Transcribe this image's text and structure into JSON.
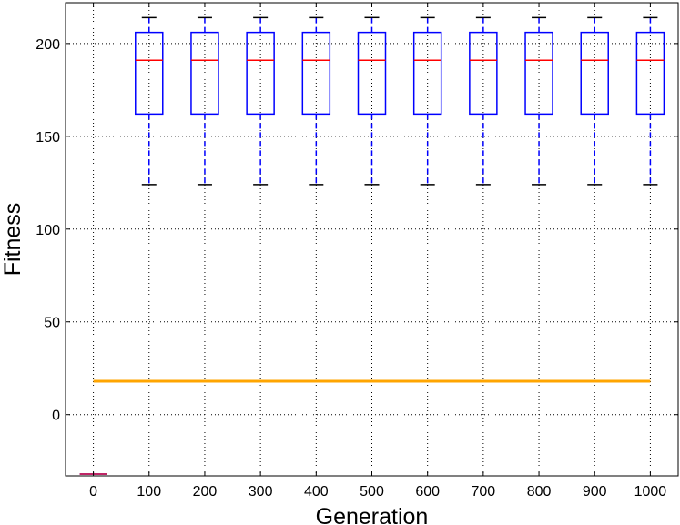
{
  "chart_data": {
    "type": "box",
    "title": "",
    "xlabel": "Generation",
    "ylabel": "Fitness",
    "ylim": [
      -33,
      222
    ],
    "xlim": [
      -50,
      1050
    ],
    "grid": true,
    "x_ticks": [
      0,
      100,
      200,
      300,
      400,
      500,
      600,
      700,
      800,
      900,
      1000
    ],
    "y_ticks": [
      0,
      50,
      100,
      150,
      200
    ],
    "boxes": [
      {
        "x": 0,
        "whisker_low": -32,
        "q1": -32,
        "median": -32,
        "q3": -32,
        "whisker_high": -32
      },
      {
        "x": 100,
        "whisker_low": 124,
        "q1": 162,
        "median": 191,
        "q3": 206,
        "whisker_high": 214
      },
      {
        "x": 200,
        "whisker_low": 124,
        "q1": 162,
        "median": 191,
        "q3": 206,
        "whisker_high": 214
      },
      {
        "x": 300,
        "whisker_low": 124,
        "q1": 162,
        "median": 191,
        "q3": 206,
        "whisker_high": 214
      },
      {
        "x": 400,
        "whisker_low": 124,
        "q1": 162,
        "median": 191,
        "q3": 206,
        "whisker_high": 214
      },
      {
        "x": 500,
        "whisker_low": 124,
        "q1": 162,
        "median": 191,
        "q3": 206,
        "whisker_high": 214
      },
      {
        "x": 600,
        "whisker_low": 124,
        "q1": 162,
        "median": 191,
        "q3": 206,
        "whisker_high": 214
      },
      {
        "x": 700,
        "whisker_low": 124,
        "q1": 162,
        "median": 191,
        "q3": 206,
        "whisker_high": 214
      },
      {
        "x": 800,
        "whisker_low": 124,
        "q1": 162,
        "median": 191,
        "q3": 206,
        "whisker_high": 214
      },
      {
        "x": 900,
        "whisker_low": 124,
        "q1": 162,
        "median": 191,
        "q3": 206,
        "whisker_high": 214
      },
      {
        "x": 1000,
        "whisker_low": 124,
        "q1": 162,
        "median": 191,
        "q3": 206,
        "whisker_high": 214
      }
    ],
    "reference_line": {
      "y": 18,
      "x_start": 0,
      "x_end": 1000
    },
    "colors": {
      "box": "#0000ff",
      "median": "#ff0000",
      "whisker": "#0000ff",
      "cap": "#000000",
      "reference_line": "#ffa500",
      "grid": "#000000"
    }
  }
}
